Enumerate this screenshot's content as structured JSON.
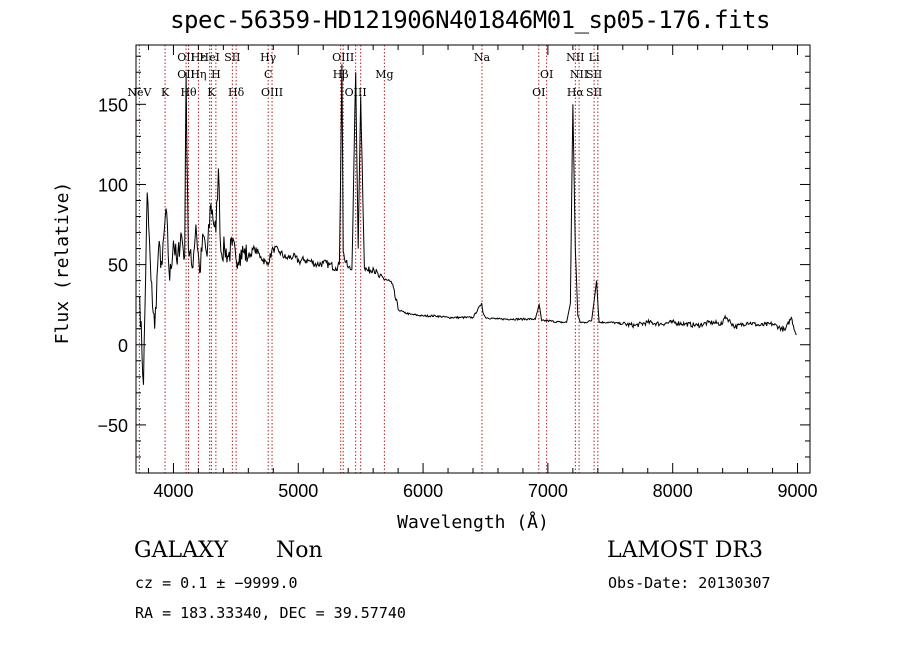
{
  "title": "spec-56359-HD121906N401846M01_sp05-176.fits",
  "chart_data": {
    "type": "line",
    "xlabel": "Wavelength (Å)",
    "ylabel": "Flux (relative)",
    "xlim": [
      3700,
      9100
    ],
    "ylim": [
      -80,
      187
    ],
    "xticks": [
      "4000",
      "5000",
      "6000",
      "7000",
      "8000",
      "9000"
    ],
    "yticks": [
      "−50",
      "0",
      "50",
      "100",
      "150"
    ],
    "series": [
      {
        "x": [
          3730,
          3760,
          3790,
          3820,
          3850,
          3880,
          3910,
          3940,
          3970,
          4000,
          4030,
          4060,
          4090,
          4101,
          4120,
          4150,
          4180,
          4210,
          4240,
          4270,
          4300,
          4340,
          4360,
          4380,
          4410,
          4440,
          4470,
          4500,
          4530,
          4560,
          4600,
          4650,
          4700,
          4750,
          4800,
          4850,
          4900,
          4959,
          5007,
          5050,
          5100,
          5150,
          5200,
          5250,
          5300,
          5330,
          5350,
          5360,
          5370,
          5400,
          5430,
          5460,
          5480,
          5500,
          5530,
          5560,
          5600,
          5650,
          5700,
          5750,
          5800,
          5850,
          5900,
          6000,
          6100,
          6200,
          6300,
          6400,
          6470,
          6480,
          6500,
          6600,
          6700,
          6800,
          6900,
          6930,
          6950,
          7000,
          7100,
          7150,
          7180,
          7200,
          7220,
          7240,
          7260,
          7300,
          7350,
          7390,
          7410,
          7450,
          7500,
          7600,
          7700,
          7800,
          7900,
          8000,
          8100,
          8200,
          8300,
          8400,
          8420,
          8500,
          8600,
          8700,
          8800,
          8900,
          8950,
          8990
        ],
        "y": [
          30,
          -25,
          95,
          40,
          10,
          60,
          50,
          85,
          40,
          65,
          50,
          70,
          55,
          170,
          60,
          48,
          75,
          45,
          68,
          55,
          88,
          70,
          110,
          58,
          60,
          55,
          62,
          54,
          57,
          58,
          55,
          60,
          55,
          50,
          60,
          58,
          54,
          55,
          52,
          53,
          52,
          50,
          51,
          50,
          48,
          50,
          175,
          58,
          54,
          48,
          47,
          170,
          60,
          155,
          48,
          46,
          48,
          42,
          41,
          38,
          22,
          20,
          19,
          18,
          18,
          17,
          17,
          17,
          26,
          20,
          17,
          16,
          16,
          16,
          16,
          25,
          15,
          15,
          14,
          14,
          26,
          150,
          60,
          18,
          14,
          14,
          15,
          40,
          14,
          14,
          14,
          13,
          12,
          14,
          13,
          14,
          13,
          12,
          14,
          13,
          18,
          11,
          14,
          12,
          13,
          9,
          17,
          6
        ],
        "color": "#000000"
      }
    ],
    "lines": [
      {
        "x": 3727,
        "labels": [
          {
            "t": "NeV",
            "r": 3
          }
        ]
      },
      {
        "x": 3933,
        "labels": [
          {
            "t": "K",
            "r": 3
          }
        ]
      },
      {
        "x": 4101,
        "labels": [
          {
            "t": "OII",
            "r": 1
          },
          {
            "t": "OII",
            "r": 2
          }
        ]
      },
      {
        "x": 4121,
        "labels": [
          {
            "t": "Hθ",
            "r": 3
          }
        ]
      },
      {
        "x": 4200,
        "labels": [
          {
            "t": "Hε",
            "r": 1
          },
          {
            "t": "Hη",
            "r": 2
          }
        ]
      },
      {
        "x": 4290,
        "labels": [
          {
            "t": "HeI",
            "r": 1
          }
        ]
      },
      {
        "x": 4304,
        "labels": [
          {
            "t": "K",
            "r": 3
          }
        ]
      },
      {
        "x": 4340,
        "labels": [
          {
            "t": "H",
            "r": 2
          }
        ]
      },
      {
        "x": 4472,
        "labels": [
          {
            "t": "SII",
            "r": 1
          }
        ]
      },
      {
        "x": 4502,
        "labels": [
          {
            "t": "Hδ",
            "r": 3
          }
        ]
      },
      {
        "x": 4759,
        "labels": [
          {
            "t": "Hγ",
            "r": 1
          },
          {
            "t": "C",
            "r": 2
          }
        ]
      },
      {
        "x": 4790,
        "labels": [
          {
            "t": "OIII",
            "r": 3
          }
        ]
      },
      {
        "x": 5340,
        "labels": [
          {
            "t": "Hβ",
            "r": 2
          }
        ]
      },
      {
        "x": 5360,
        "labels": [
          {
            "t": "OIII",
            "r": 1
          }
        ]
      },
      {
        "x": 5460,
        "labels": [
          {
            "t": "OIII",
            "r": 3
          }
        ]
      },
      {
        "x": 5500,
        "labels": []
      },
      {
        "x": 5690,
        "labels": [
          {
            "t": "Mg",
            "r": 2
          }
        ]
      },
      {
        "x": 6472,
        "labels": [
          {
            "t": "Na",
            "r": 1
          }
        ]
      },
      {
        "x": 6927,
        "labels": [
          {
            "t": "OI",
            "r": 3
          }
        ]
      },
      {
        "x": 6990,
        "labels": [
          {
            "t": "OI",
            "r": 2
          }
        ]
      },
      {
        "x": 7220,
        "labels": [
          {
            "t": "NII",
            "r": 1
          },
          {
            "t": "Hα",
            "r": 3
          }
        ]
      },
      {
        "x": 7250,
        "labels": [
          {
            "t": "NII",
            "r": 2
          }
        ]
      },
      {
        "x": 7370,
        "labels": [
          {
            "t": "Li",
            "r": 1
          },
          {
            "t": "SII",
            "r": 2
          },
          {
            "t": "SII",
            "r": 3
          }
        ]
      },
      {
        "x": 7400,
        "labels": []
      }
    ]
  },
  "footer": {
    "class": "GALAXY",
    "subclass": "Non",
    "survey": "LAMOST DR3",
    "cz": "cz = 0.1 ± −9999.0",
    "obsdate": "Obs-Date: 20130307",
    "radec": "RA = 183.33340, DEC =  39.57740"
  }
}
